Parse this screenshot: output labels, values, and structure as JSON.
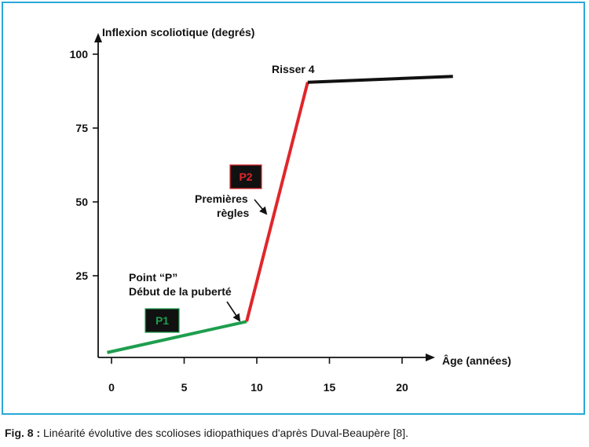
{
  "colors": {
    "frame": "#29a9d8",
    "p1": "#1e9e4e",
    "p2": "#e0262b",
    "plateau": "#111111",
    "box_bg": "#111111"
  },
  "caption": {
    "label": "Fig. 8 :",
    "text": " Linéarité évolutive des scolioses idiopathiques d'après Duval-Beaupère [8]."
  },
  "chart_data": {
    "type": "line",
    "ylabel": "Inflexion scoliotique (degrés)",
    "xlabel": "Âge (années)",
    "xlim": [
      -0.3,
      23
    ],
    "ylim": [
      -3,
      103
    ],
    "xticks": [
      0,
      5,
      10,
      15,
      20
    ],
    "yticks": [
      25,
      50,
      75,
      100
    ],
    "grid": false,
    "series": [
      {
        "name": "P1",
        "color": "#1e9e4e",
        "x": [
          -0.3,
          9.3
        ],
        "y": [
          -1,
          9.5
        ]
      },
      {
        "name": "P2",
        "color": "#e0262b",
        "x": [
          9.3,
          13.5
        ],
        "y": [
          9.5,
          90.5
        ]
      },
      {
        "name": "",
        "color": "#111111",
        "x": [
          13.5,
          23.5
        ],
        "y": [
          90.5,
          92.5
        ]
      }
    ],
    "annotations": {
      "risser": "Risser 4",
      "point_p_1": "Point “P”",
      "point_p_2": "Début de la puberté",
      "regles_1": "Premières",
      "regles_2": "règles",
      "p1_box": "P1",
      "p2_box": "P2"
    }
  }
}
